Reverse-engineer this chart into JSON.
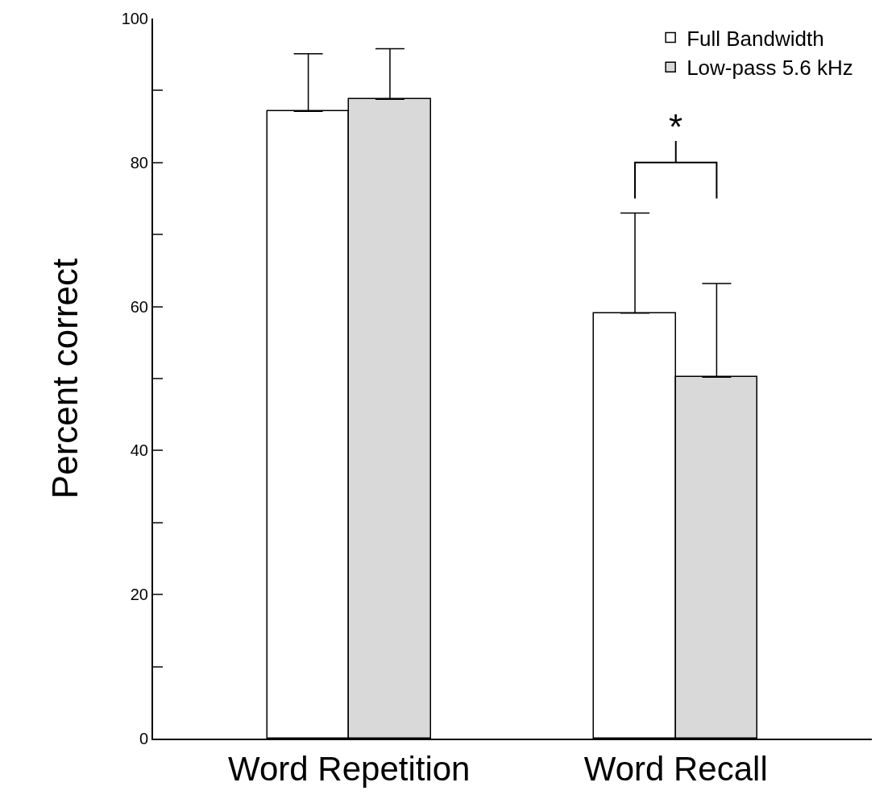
{
  "chart_data": {
    "type": "bar",
    "ylabel": "Percent correct",
    "categories": [
      "Word Repetition",
      "Word Recall"
    ],
    "series": [
      {
        "name": "Full Bandwidth",
        "color": "#ffffff",
        "values": [
          87.1,
          59.1
        ],
        "errors": [
          [
            87.1,
            95.1
          ],
          [
            59.1,
            73.0
          ]
        ]
      },
      {
        "name": "Low-pass 5.6 kHz",
        "color": "#d9d9d9",
        "values": [
          88.8,
          50.2
        ],
        "errors": [
          [
            88.8,
            95.8
          ],
          [
            50.2,
            63.2
          ]
        ]
      }
    ],
    "ylim": [
      0,
      100
    ],
    "yticks": [
      0,
      {
        "value": 10,
        "label": null
      },
      20,
      {
        "value": 30,
        "label": null
      },
      40,
      {
        "value": 50,
        "label": null
      },
      60,
      {
        "value": 70,
        "label": null
      },
      80,
      {
        "value": 90,
        "label": null
      },
      100
    ],
    "annotations": [
      "*"
    ],
    "legend": "top right"
  }
}
